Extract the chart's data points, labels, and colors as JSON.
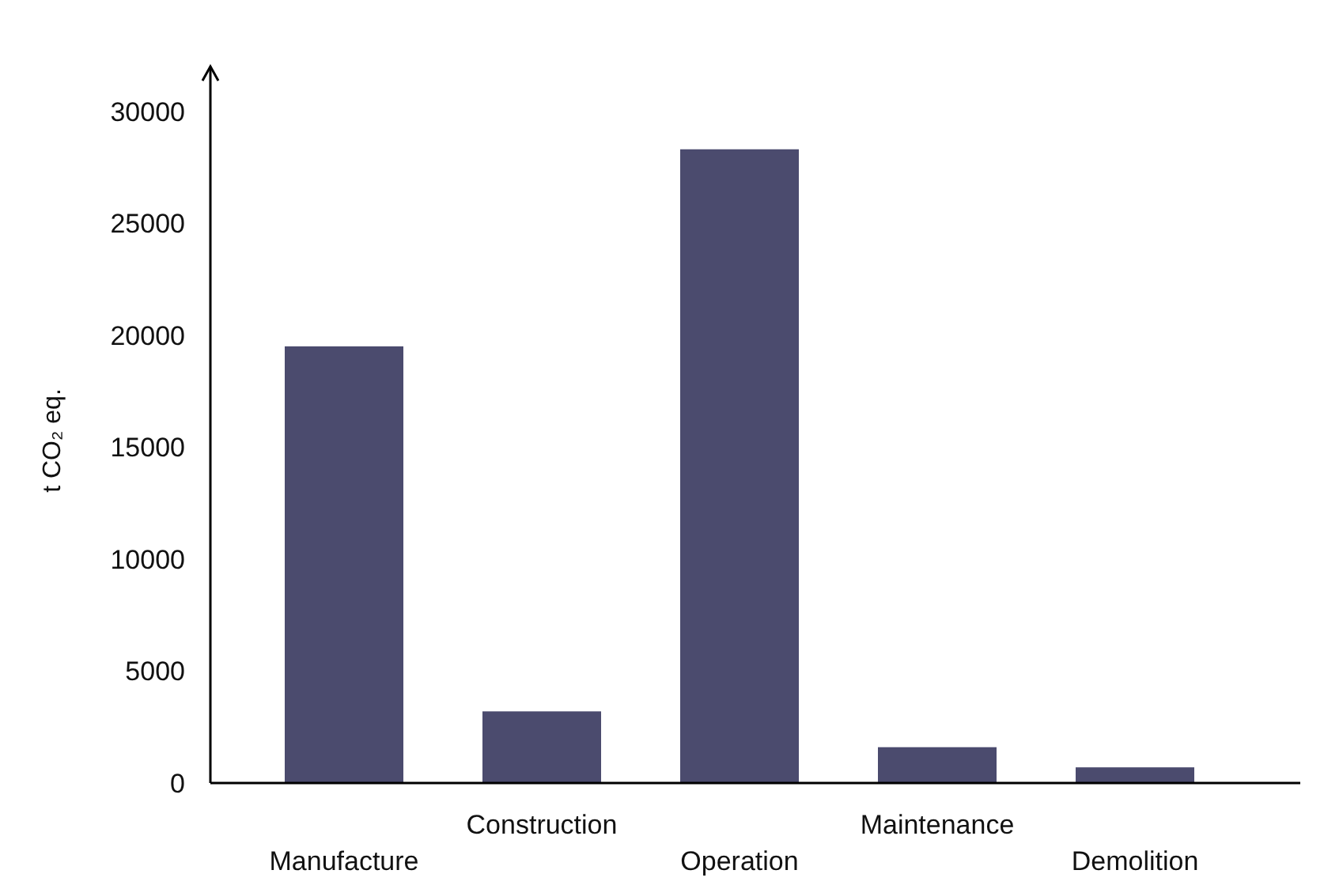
{
  "chart_data": {
    "type": "bar",
    "ylabel": "t CO₂ eq.",
    "categories": [
      "Manufacture",
      "Construction",
      "Operation",
      "Maintenance",
      "Demolition"
    ],
    "values": [
      19500,
      3200,
      28300,
      1600,
      700
    ],
    "color": "#4b4b6e",
    "ylim": [
      0,
      32000
    ],
    "yticks": [
      0,
      5000,
      10000,
      15000,
      20000,
      25000,
      30000
    ],
    "grid": false
  }
}
